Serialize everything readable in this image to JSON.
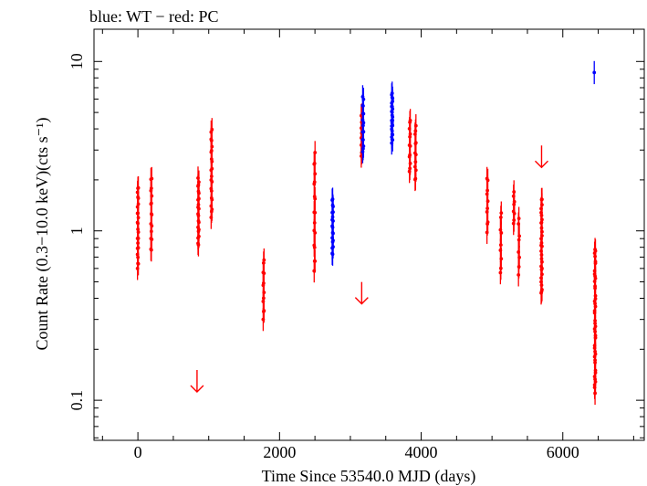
{
  "chart_data": {
    "type": "scatter",
    "title": "blue: WT − red: PC",
    "xlabel": "Time Since 53540.0 MJD (days)",
    "ylabel": "Count Rate (0.3−10.0 keV)(cts s⁻¹)",
    "xlim": [
      -620,
      7150
    ],
    "ylim": [
      0.058,
      15.5
    ],
    "yscale": "log",
    "grid": false,
    "x_ticks": [
      0,
      2000,
      4000,
      6000
    ],
    "x_tick_labels": [
      "0",
      "2000",
      "4000",
      "6000"
    ],
    "y_ticks": [
      0.1,
      1,
      10
    ],
    "y_tick_labels": [
      "0.1",
      "1",
      "10"
    ],
    "colors": {
      "WT": "#0000ff",
      "PC": "#ff0000"
    },
    "series": [
      {
        "name": "PC",
        "mode": "PC",
        "clusters": [
          {
            "x": 0,
            "lo": 0.6,
            "hi": 1.85,
            "n": 24
          },
          {
            "x": 190,
            "lo": 0.75,
            "hi": 2.1,
            "n": 16
          },
          {
            "x": 855,
            "lo": 0.82,
            "hi": 2.05,
            "n": 22
          },
          {
            "x": 1040,
            "lo": 1.2,
            "hi": 4.0,
            "n": 22
          },
          {
            "x": 1775,
            "lo": 0.3,
            "hi": 0.68,
            "n": 12
          },
          {
            "x": 2495,
            "lo": 0.58,
            "hi": 2.9,
            "n": 18
          },
          {
            "x": 3160,
            "lo": 2.75,
            "hi": 4.9,
            "n": 14
          },
          {
            "x": 3840,
            "lo": 2.2,
            "hi": 4.6,
            "n": 12
          },
          {
            "x": 3920,
            "lo": 1.95,
            "hi": 4.2,
            "n": 12
          },
          {
            "x": 4935,
            "lo": 0.98,
            "hi": 2.1,
            "n": 10
          },
          {
            "x": 5125,
            "lo": 0.55,
            "hi": 1.3,
            "n": 9
          },
          {
            "x": 5310,
            "lo": 1.1,
            "hi": 1.7,
            "n": 8
          },
          {
            "x": 5380,
            "lo": 0.55,
            "hi": 1.2,
            "n": 8
          },
          {
            "x": 5700,
            "lo": 0.42,
            "hi": 1.55,
            "n": 30
          },
          {
            "x": 6455,
            "lo": 0.11,
            "hi": 0.8,
            "n": 42
          }
        ],
        "upper_limits": [
          {
            "x": 835,
            "y": 0.13
          },
          {
            "x": 3160,
            "y": 0.43
          },
          {
            "x": 5700,
            "y": 2.75
          }
        ]
      },
      {
        "name": "WT",
        "mode": "WT",
        "clusters": [
          {
            "x": 2750,
            "lo": 0.72,
            "hi": 1.55,
            "n": 20
          },
          {
            "x": 3180,
            "lo": 2.9,
            "hi": 6.2,
            "n": 16
          },
          {
            "x": 3590,
            "lo": 3.3,
            "hi": 6.5,
            "n": 26
          },
          {
            "x": 6450,
            "lo": 8.6,
            "hi": 8.6,
            "n": 1
          }
        ]
      }
    ]
  }
}
